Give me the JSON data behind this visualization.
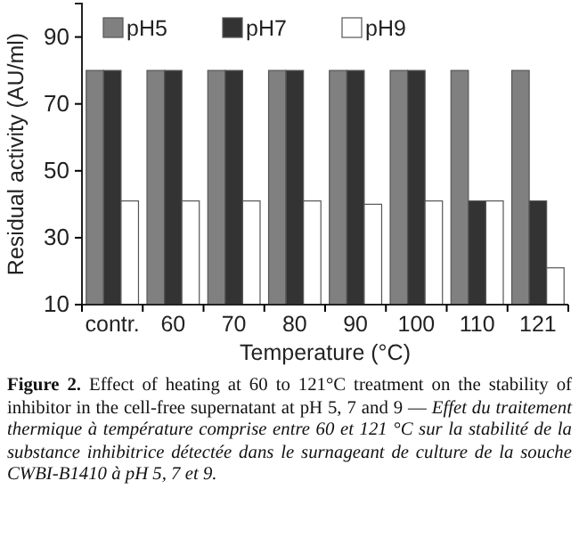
{
  "chart_data": {
    "type": "bar",
    "xlabel": "Temperature (°C)",
    "ylabel": "Residual activity (AU/ml)",
    "categories": [
      "contr.",
      "60",
      "70",
      "80",
      "90",
      "100",
      "110",
      "121"
    ],
    "series": [
      {
        "name": "pH5",
        "color": "#808080",
        "values": [
          80,
          80,
          80,
          80,
          80,
          80,
          80,
          80
        ]
      },
      {
        "name": "pH7",
        "color": "#333333",
        "values": [
          80,
          80,
          80,
          80,
          80,
          80,
          41,
          41
        ]
      },
      {
        "name": "pH9",
        "color": "#ffffff",
        "values": [
          41,
          41,
          41,
          41,
          40,
          41,
          41,
          21
        ]
      }
    ],
    "ylim": [
      10,
      100
    ],
    "yticks": [
      10,
      30,
      50,
      70,
      90
    ],
    "grid": false,
    "legend": "top",
    "annotations": [
      "Figure 2.",
      "Effect of heating at 60 to 121°C treatment on the stability of inhibitor in the cell-free supernatant at pH 5, 7 and 9 —",
      "Effet du traitement thermique à température comprise entre 60 et 121 °C sur la stabilité de la substance inhibitrice détectée dans le surnageant de culture de la souche CWBI-B1410 à pH 5, 7 et 9."
    ]
  }
}
